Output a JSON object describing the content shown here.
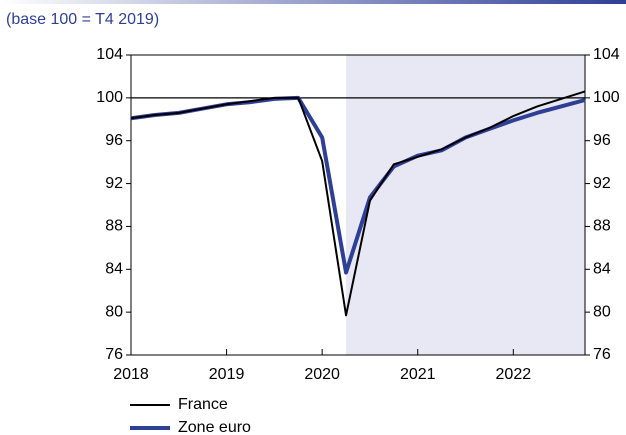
{
  "chart_data": {
    "type": "line",
    "subtitle": "(base 100 = T4 2019)",
    "x": [
      2018,
      2018.25,
      2018.5,
      2018.75,
      2019,
      2019.25,
      2019.5,
      2019.75,
      2020,
      2020.25,
      2020.5,
      2020.75,
      2021,
      2021.25,
      2021.5,
      2021.75,
      2022,
      2022.25,
      2022.5,
      2022.75
    ],
    "series": [
      {
        "name": "France",
        "color": "#000000",
        "values": [
          98.1,
          98.4,
          98.6,
          99.0,
          99.4,
          99.7,
          100.0,
          100.0,
          94.1,
          79.7,
          90.4,
          93.8,
          94.5,
          95.2,
          96.3,
          97.2,
          98.3,
          99.2,
          99.9,
          100.6
        ]
      },
      {
        "name": "Zone euro",
        "color": "#2e3f96",
        "values": [
          98.1,
          98.4,
          98.6,
          99.0,
          99.4,
          99.6,
          99.9,
          100.0,
          96.3,
          83.7,
          90.7,
          93.6,
          94.6,
          95.1,
          96.3,
          97.1,
          97.9,
          98.6,
          99.2,
          99.8
        ]
      }
    ],
    "xlim": [
      2018,
      2022.75
    ],
    "xticks": [
      2018,
      2019,
      2020,
      2021,
      2022
    ],
    "ylim": [
      76,
      104
    ],
    "yticks": [
      76,
      80,
      84,
      88,
      92,
      96,
      100,
      104
    ],
    "reference_line": 100,
    "shaded_xrange": [
      2020.25,
      2022.75
    ]
  }
}
